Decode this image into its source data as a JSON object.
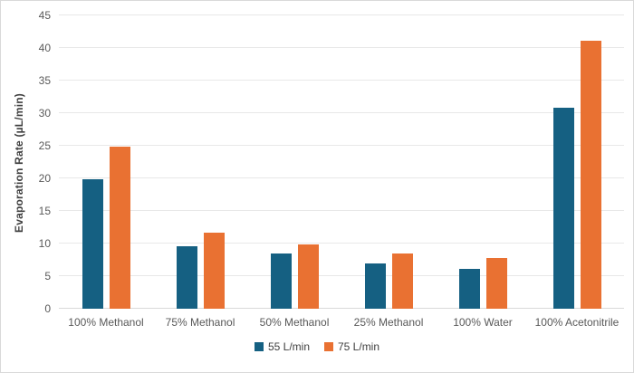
{
  "chart_data": {
    "type": "bar",
    "title": "",
    "categories": [
      "100% Methanol",
      "75% Methanol",
      "50% Methanol",
      "25% Methanol",
      "100% Water",
      "100% Acetonitrile"
    ],
    "series": [
      {
        "name": "55 L/min",
        "color": "#156082",
        "values": [
          19.8,
          9.6,
          8.5,
          7.0,
          6.1,
          30.8
        ]
      },
      {
        "name": "75 L/min",
        "color": "#E97132",
        "values": [
          24.8,
          11.7,
          9.9,
          8.5,
          7.8,
          41.1
        ]
      }
    ],
    "xlabel": "",
    "ylabel": "Evaporation Rate (µL/min)",
    "ylim": [
      0,
      45
    ],
    "ytick_step": 5,
    "yticks": [
      "0",
      "5",
      "10",
      "15",
      "20",
      "25",
      "30",
      "35",
      "40",
      "45"
    ],
    "grid": true,
    "legend_position": "bottom"
  },
  "colors": {
    "series_55": "#156082",
    "series_75": "#E97132",
    "gridline": "#E8E8E8",
    "axis_line": "#D9D9D9",
    "tick_text": "#595959",
    "category_text": "#595959",
    "legend_text": "#404040",
    "y_title_text": "#404040",
    "frame_border": "#D9D9D9",
    "background": "#FFFFFF"
  }
}
